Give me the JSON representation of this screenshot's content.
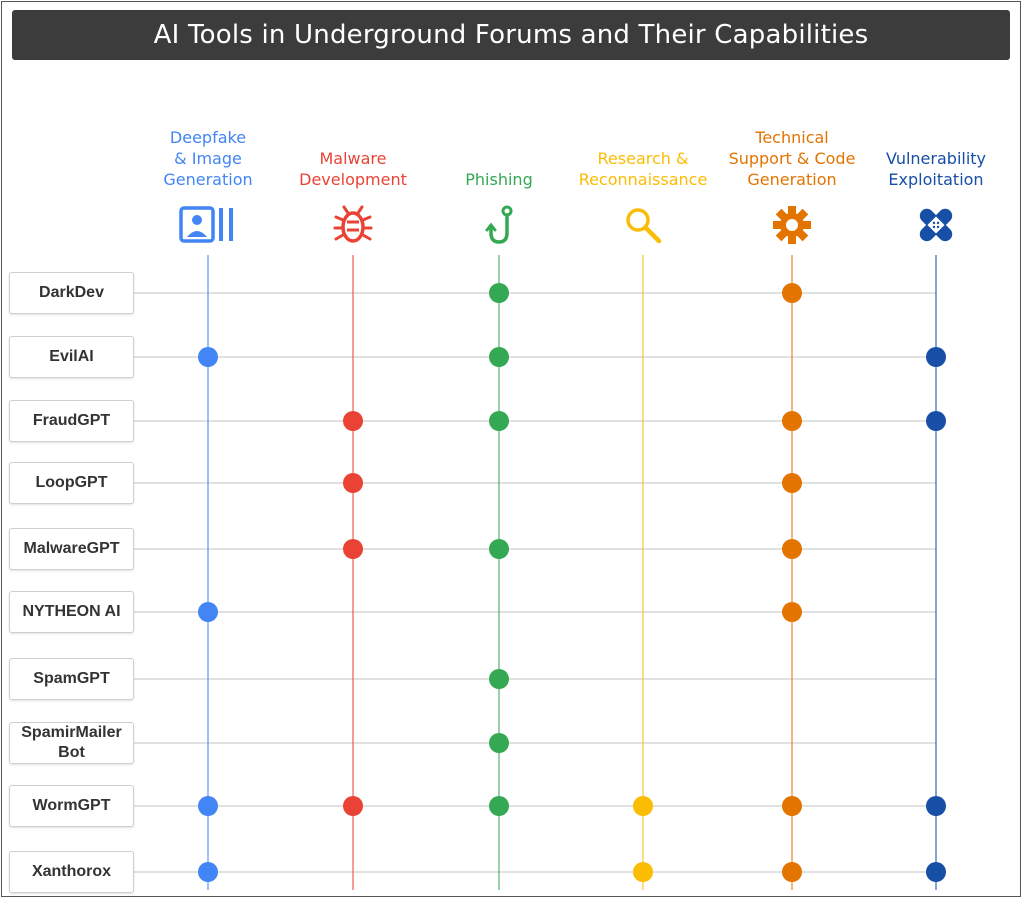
{
  "title": "AI Tools in Underground Forums and Their Capabilities",
  "columns": [
    {
      "id": "deepfake",
      "lines": [
        "Deepfake",
        "& Image",
        "Generation"
      ],
      "color": "#4285f4",
      "icon": "image-id-icon"
    },
    {
      "id": "malware",
      "lines": [
        "Malware",
        "Development"
      ],
      "color": "#ea4335",
      "icon": "bug-icon"
    },
    {
      "id": "phishing",
      "lines": [
        "Phishing"
      ],
      "color": "#34a853",
      "icon": "fishhook-icon"
    },
    {
      "id": "research",
      "lines": [
        "Research &",
        "Reconnaissance"
      ],
      "color": "#fbbc04",
      "icon": "magnifier-icon"
    },
    {
      "id": "technical",
      "lines": [
        "Technical",
        "Support & Code",
        "Generation"
      ],
      "color": "#e37400",
      "icon": "gear-icon"
    },
    {
      "id": "vulnerability",
      "lines": [
        "Vulnerability",
        "Exploitation"
      ],
      "color": "#174ea6",
      "icon": "bandage-icon"
    }
  ],
  "rows": [
    {
      "lines": [
        "DarkDev"
      ],
      "caps": [
        "phishing",
        "technical"
      ]
    },
    {
      "lines": [
        "EvilAI"
      ],
      "caps": [
        "deepfake",
        "phishing",
        "vulnerability"
      ]
    },
    {
      "lines": [
        "FraudGPT"
      ],
      "caps": [
        "malware",
        "phishing",
        "technical",
        "vulnerability"
      ]
    },
    {
      "lines": [
        "LoopGPT"
      ],
      "caps": [
        "malware",
        "technical"
      ]
    },
    {
      "lines": [
        "MalwareGPT"
      ],
      "caps": [
        "malware",
        "phishing",
        "technical"
      ]
    },
    {
      "lines": [
        "NYTHEON AI"
      ],
      "caps": [
        "deepfake",
        "technical"
      ]
    },
    {
      "lines": [
        "SpamGPT"
      ],
      "caps": [
        "phishing"
      ]
    },
    {
      "lines": [
        "SpamirMailer",
        "Bot"
      ],
      "caps": [
        "phishing"
      ]
    },
    {
      "lines": [
        "WormGPT"
      ],
      "caps": [
        "deepfake",
        "malware",
        "phishing",
        "research",
        "technical",
        "vulnerability"
      ]
    },
    {
      "lines": [
        "Xanthorox"
      ],
      "caps": [
        "deepfake",
        "research",
        "technical",
        "vulnerability"
      ]
    }
  ]
}
